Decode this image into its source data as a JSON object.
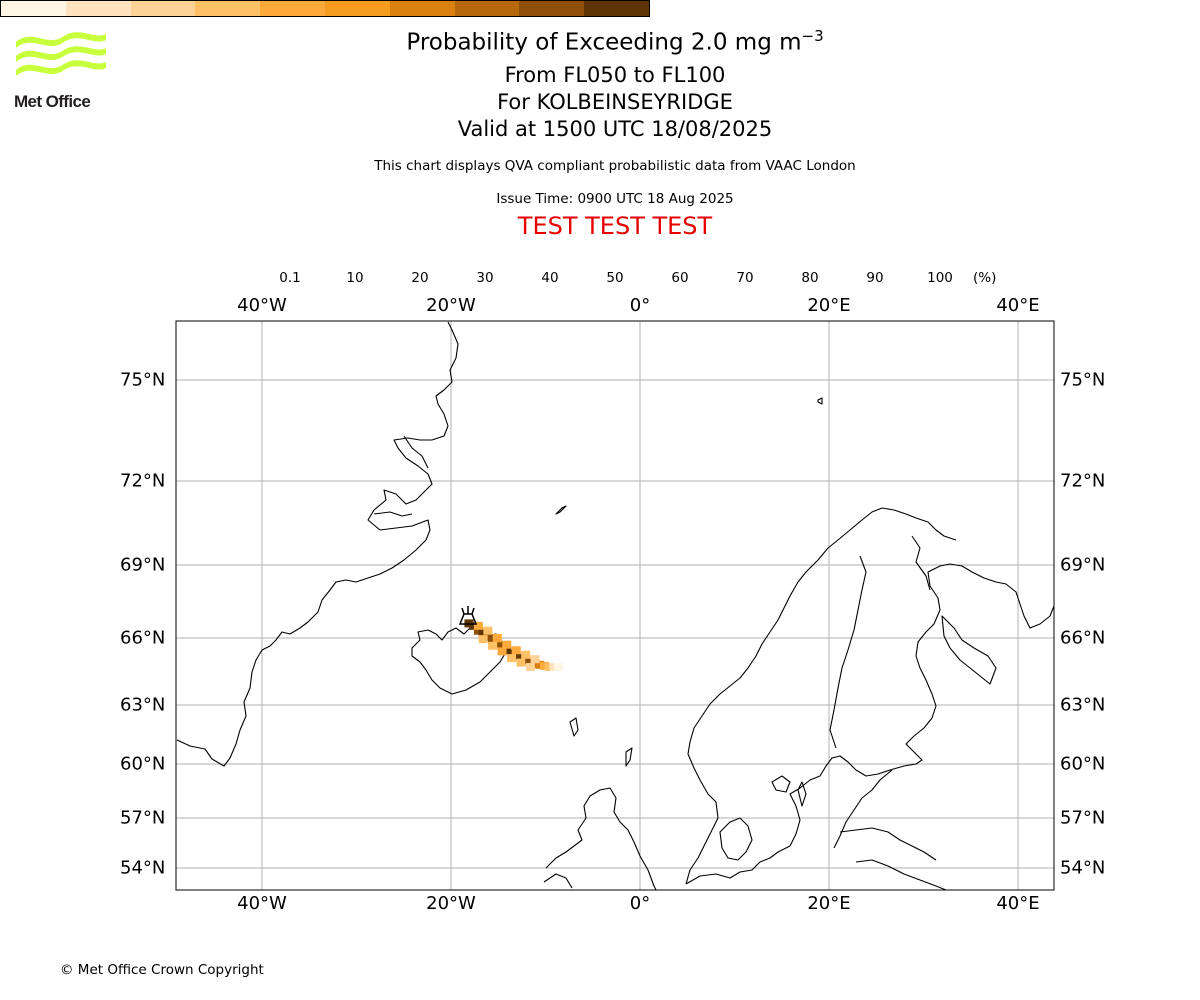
{
  "header": {
    "title_prefix": "Probability of Exceeding 2.0 mg m",
    "title_superscript": "−3",
    "flight_levels": "From FL050 to FL100",
    "volcano": "For KOLBEINSEYRIDGE",
    "valid_time": "Valid at 1500 UTC 18/08/2025",
    "info": "This chart displays QVA compliant probabilistic data from VAAC London",
    "issue_time": "Issue Time: 0900 UTC 18 Aug 2025",
    "test_banner": "TEST TEST TEST"
  },
  "logo": {
    "text": "Met Office",
    "color": "#c8ff3c",
    "icon": "met-office-waves-logo"
  },
  "colorbar": {
    "labels": [
      "0.1",
      "10",
      "20",
      "30",
      "40",
      "50",
      "60",
      "70",
      "80",
      "90",
      "100"
    ],
    "unit": "(%)",
    "colors": [
      "#fff6e6",
      "#ffe4bf",
      "#ffd296",
      "#ffc066",
      "#ffaa3a",
      "#f59b1e",
      "#d98010",
      "#b8680c",
      "#8f4f08",
      "#5e3404"
    ]
  },
  "map": {
    "lon_labels": [
      {
        "lon": -40,
        "text": "40°W"
      },
      {
        "lon": -20,
        "text": "20°W"
      },
      {
        "lon": 0,
        "text": "0°"
      },
      {
        "lon": 20,
        "text": "20°E"
      },
      {
        "lon": 40,
        "text": "40°E"
      }
    ],
    "lat_labels": [
      {
        "lat": 75,
        "text": "75°N"
      },
      {
        "lat": 72,
        "text": "72°N"
      },
      {
        "lat": 69,
        "text": "69°N"
      },
      {
        "lat": 66,
        "text": "66°N"
      },
      {
        "lat": 63,
        "text": "63°N"
      },
      {
        "lat": 60,
        "text": "60°N"
      },
      {
        "lat": 57,
        "text": "57°N"
      },
      {
        "lat": 54,
        "text": "54°N"
      }
    ],
    "volcano_marker": "volcano-icon",
    "ash_plume": [
      {
        "lon": -18.1,
        "lat": 66.6,
        "p": 95
      },
      {
        "lon": -17.6,
        "lat": 66.5,
        "p": 90
      },
      {
        "lon": -17.1,
        "lat": 66.3,
        "p": 85
      },
      {
        "lon": -16.6,
        "lat": 66.2,
        "p": 90
      },
      {
        "lon": -16.1,
        "lat": 66.05,
        "p": 80
      },
      {
        "lon": -15.6,
        "lat": 65.9,
        "p": 85
      },
      {
        "lon": -15.1,
        "lat": 65.75,
        "p": 75
      },
      {
        "lon": -14.6,
        "lat": 65.6,
        "p": 80
      },
      {
        "lon": -14.1,
        "lat": 65.45,
        "p": 95
      },
      {
        "lon": -13.6,
        "lat": 65.3,
        "p": 90
      },
      {
        "lon": -13.1,
        "lat": 65.2,
        "p": 85
      },
      {
        "lon": -12.6,
        "lat": 65.1,
        "p": 95
      },
      {
        "lon": -12.1,
        "lat": 65.0,
        "p": 90
      },
      {
        "lon": -11.6,
        "lat": 64.9,
        "p": 85
      },
      {
        "lon": -11.1,
        "lat": 64.85,
        "p": 75
      },
      {
        "lon": -10.6,
        "lat": 64.8,
        "p": 60
      },
      {
        "lon": -10.1,
        "lat": 64.75,
        "p": 45
      },
      {
        "lon": -9.6,
        "lat": 64.7,
        "p": 30
      },
      {
        "lon": -9.1,
        "lat": 64.7,
        "p": 15
      },
      {
        "lon": -8.6,
        "lat": 64.7,
        "p": 5
      },
      {
        "lon": -17.1,
        "lat": 66.5,
        "p": 40
      },
      {
        "lon": -16.1,
        "lat": 66.3,
        "p": 35
      },
      {
        "lon": -15.1,
        "lat": 66.0,
        "p": 40
      },
      {
        "lon": -14.1,
        "lat": 65.7,
        "p": 45
      },
      {
        "lon": -13.1,
        "lat": 65.45,
        "p": 40
      },
      {
        "lon": -12.1,
        "lat": 65.25,
        "p": 35
      },
      {
        "lon": -11.1,
        "lat": 65.05,
        "p": 25
      },
      {
        "lon": -16.6,
        "lat": 65.95,
        "p": 30
      },
      {
        "lon": -15.6,
        "lat": 65.65,
        "p": 35
      },
      {
        "lon": -14.6,
        "lat": 65.4,
        "p": 40
      },
      {
        "lon": -13.6,
        "lat": 65.1,
        "p": 35
      },
      {
        "lon": -12.6,
        "lat": 64.9,
        "p": 30
      },
      {
        "lon": -11.6,
        "lat": 64.7,
        "p": 20
      }
    ]
  },
  "footer": {
    "copyright": "© Met Office Crown Copyright"
  }
}
